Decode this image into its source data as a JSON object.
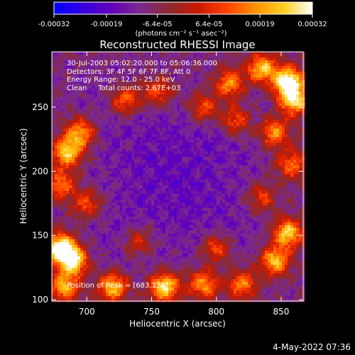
{
  "chart_data": {
    "type": "heatmap",
    "title": "Reconstructed RHESSI Image",
    "xlabel": "Heliocentric X (arcsec)",
    "ylabel": "Heliocentric Y (arcsec)",
    "xlim": [
      673,
      867
    ],
    "ylim": [
      99,
      293
    ],
    "x_ticks": [
      700,
      750,
      800,
      850
    ],
    "y_ticks": [
      100,
      150,
      200,
      250
    ],
    "colorbar": {
      "range": [
        -0.00032,
        0.00032
      ],
      "tick_labels": [
        "-0.00032",
        "-0.00019",
        "-6.4e-05",
        "6.4e-05",
        "0.00019",
        "0.00032"
      ],
      "tick_values": [
        -0.00032,
        -0.00019,
        -6.4e-05,
        6.4e-05,
        0.00019,
        0.00032
      ],
      "label": "(photons cm⁻² s⁻¹ asec⁻²)",
      "colormap": [
        "#0000ff",
        "#3300e0",
        "#6400b8",
        "#7a2a90",
        "#8a2a30",
        "#c81800",
        "#ff4000",
        "#ff9000",
        "#ffd020",
        "#ffffff"
      ]
    },
    "annotations": [
      "30-Jul-2003 05:02:20.000 to 05:06:36.000",
      "Detectors: 3F 4F 5F 6F 7F 8F, Att 0",
      "Energy Range: 12.0 - 25.0 keV",
      "Clean     Total counts: 2.67E+03"
    ],
    "peak_label": "Position of Peak = [683,138]",
    "peak_position": [
      683,
      138
    ],
    "bright_regions": [
      {
        "x": 680,
        "y": 140,
        "level": 1.0
      },
      {
        "x": 690,
        "y": 130,
        "level": 0.75
      },
      {
        "x": 683,
        "y": 110,
        "level": 0.65
      },
      {
        "x": 720,
        "y": 110,
        "level": 0.7
      },
      {
        "x": 760,
        "y": 110,
        "level": 0.8
      },
      {
        "x": 790,
        "y": 112,
        "level": 0.6
      },
      {
        "x": 845,
        "y": 130,
        "level": 0.7
      },
      {
        "x": 855,
        "y": 152,
        "level": 0.75
      },
      {
        "x": 820,
        "y": 112,
        "level": 0.55
      },
      {
        "x": 855,
        "y": 270,
        "level": 0.95
      },
      {
        "x": 860,
        "y": 255,
        "level": 0.75
      },
      {
        "x": 835,
        "y": 280,
        "level": 0.7
      },
      {
        "x": 810,
        "y": 268,
        "level": 0.6
      },
      {
        "x": 845,
        "y": 230,
        "level": 0.6
      },
      {
        "x": 858,
        "y": 205,
        "level": 0.5
      },
      {
        "x": 685,
        "y": 215,
        "level": 0.75
      },
      {
        "x": 695,
        "y": 230,
        "level": 0.6
      },
      {
        "x": 680,
        "y": 190,
        "level": 0.5
      },
      {
        "x": 700,
        "y": 175,
        "level": 0.45
      },
      {
        "x": 730,
        "y": 255,
        "level": 0.5
      },
      {
        "x": 755,
        "y": 262,
        "level": 0.45
      },
      {
        "x": 790,
        "y": 250,
        "level": 0.45
      },
      {
        "x": 815,
        "y": 240,
        "level": 0.5
      },
      {
        "x": 800,
        "y": 140,
        "level": 0.45
      },
      {
        "x": 740,
        "y": 145,
        "level": 0.35
      },
      {
        "x": 835,
        "y": 180,
        "level": 0.4
      }
    ]
  },
  "footer": {
    "timestamp": "4-May-2022 07:36"
  }
}
